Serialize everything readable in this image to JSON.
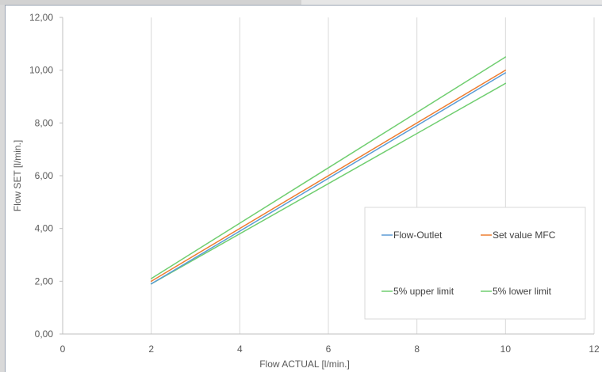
{
  "chart_data": {
    "type": "line",
    "title": "",
    "xlabel": "Flow ACTUAL [l/min.]",
    "ylabel": "Flow SET [l/min.]",
    "xlim": [
      0,
      12
    ],
    "ylim": [
      0,
      12
    ],
    "xticks": [
      0,
      2,
      4,
      6,
      8,
      10,
      12
    ],
    "yticks": [
      0,
      2,
      4,
      6,
      8,
      10,
      12
    ],
    "xtick_labels": [
      "0",
      "2",
      "4",
      "6",
      "8",
      "10",
      "12"
    ],
    "ytick_labels": [
      "0,00",
      "2,00",
      "4,00",
      "6,00",
      "8,00",
      "10,00",
      "12,00"
    ],
    "grid": "vertical-major",
    "legend_position": "bottom-right",
    "series": [
      {
        "name": "Flow-Outlet",
        "color": "#5b9bd5",
        "x": [
          2,
          10
        ],
        "y": [
          1.9,
          9.9
        ]
      },
      {
        "name": "Set value MFC",
        "color": "#ed7d31",
        "x": [
          2,
          10
        ],
        "y": [
          2.0,
          10.0
        ]
      },
      {
        "name": "5% upper limit",
        "color": "#70ce70",
        "x": [
          2,
          10
        ],
        "y": [
          2.1,
          10.5
        ]
      },
      {
        "name": "5% lower limit",
        "color": "#70ce70",
        "x": [
          2,
          10
        ],
        "y": [
          1.9,
          9.5
        ]
      }
    ]
  }
}
